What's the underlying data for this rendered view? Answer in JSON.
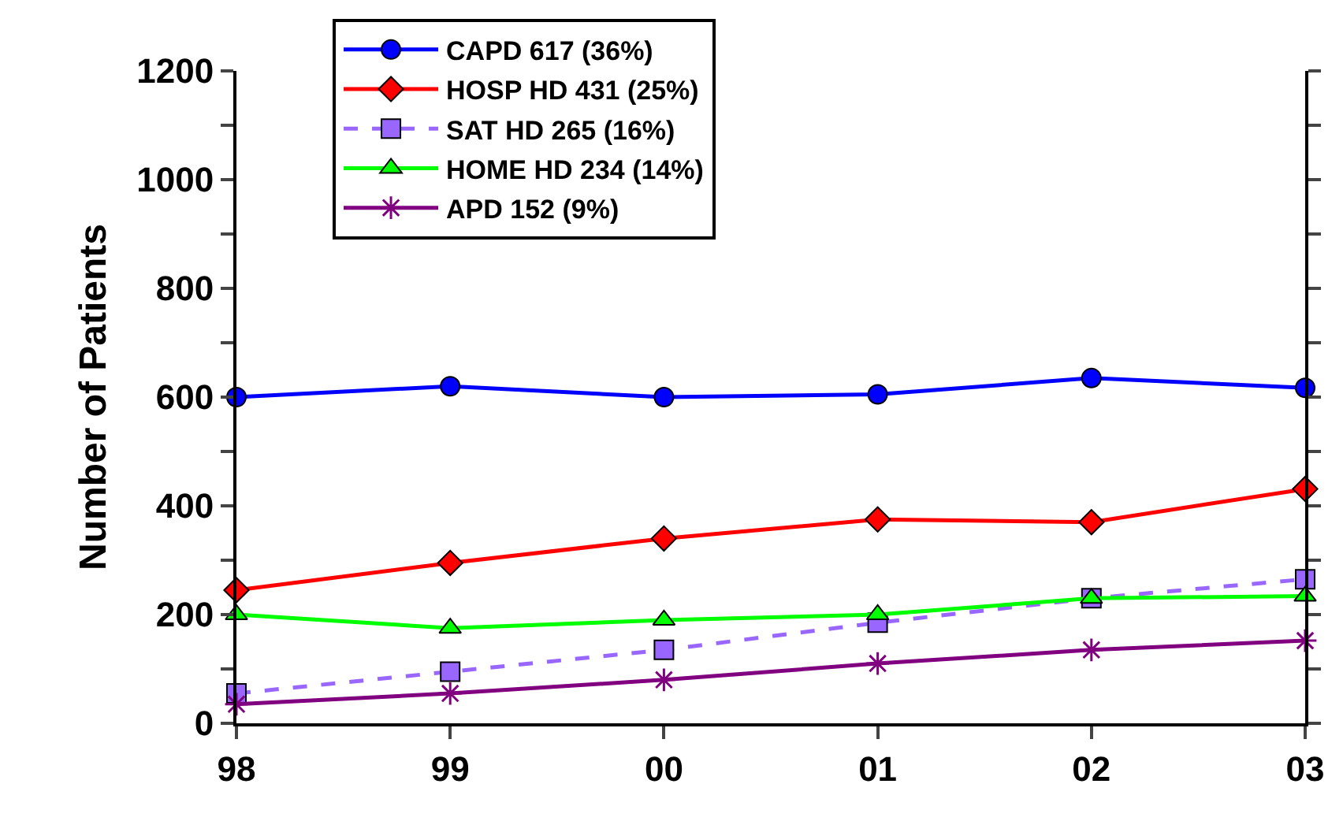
{
  "chart_data": {
    "type": "line",
    "ylabel": "Number of Patients",
    "categories": [
      "98",
      "99",
      "00",
      "01",
      "02",
      "03"
    ],
    "series": [
      {
        "name": "CAPD 617 (36%)",
        "color": "#0000ff",
        "marker": "circle",
        "line_style": "solid",
        "values": [
          600,
          620,
          600,
          605,
          635,
          617
        ]
      },
      {
        "name": "HOSP HD 431 (25%)",
        "color": "#ff0000",
        "marker": "diamond",
        "line_style": "solid",
        "values": [
          245,
          295,
          340,
          375,
          370,
          431
        ]
      },
      {
        "name": "SAT HD 265 (16%)",
        "color": "#9966ff",
        "marker": "square",
        "line_style": "dashed",
        "values": [
          55,
          95,
          135,
          185,
          230,
          265
        ]
      },
      {
        "name": "HOME HD 234 (14%)",
        "color": "#00ff00",
        "marker": "triangle",
        "line_style": "solid",
        "values": [
          200,
          175,
          190,
          200,
          230,
          234
        ]
      },
      {
        "name": "APD 152 (9%)",
        "color": "#800080",
        "marker": "cross",
        "line_style": "solid",
        "values": [
          35,
          55,
          80,
          110,
          135,
          152
        ]
      }
    ],
    "ylim": [
      0,
      1200
    ],
    "yticks": [
      0,
      {
        "value": 100,
        "label": null
      },
      200,
      {
        "value": 300,
        "label": null
      },
      400,
      {
        "value": 500,
        "label": null
      },
      600,
      {
        "value": 700,
        "label": null
      },
      800,
      {
        "value": 900,
        "label": null
      },
      1000,
      {
        "value": 1100,
        "label": null
      },
      1200
    ],
    "legend": "top"
  }
}
